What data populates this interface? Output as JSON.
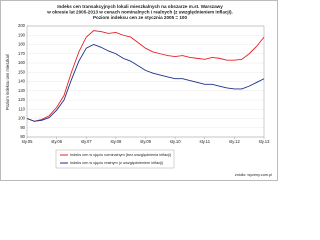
{
  "chart_data": {
    "type": "line",
    "title": [
      "Indeks cen transakcyjnych lokali mieszkalnych na obszarze m.st. Warszawy",
      "w okresie lat 2005-2013 w cenach nominalnych i realnych (z uwzględnieniem inflacji).",
      "Poziom indeksu cen ze stycznia 2005 = 100"
    ],
    "y_label": "Poziom indeksu cen mieszkań",
    "source": "źródło: wyceny.com.pl",
    "x": [
      2005,
      2005.25,
      2005.5,
      2005.75,
      2006,
      2006.25,
      2006.5,
      2006.75,
      2007,
      2007.25,
      2007.5,
      2007.75,
      2008,
      2008.25,
      2008.5,
      2008.75,
      2009,
      2009.25,
      2009.5,
      2009.75,
      2010,
      2010.25,
      2010.5,
      2010.75,
      2011,
      2011.25,
      2011.5,
      2011.75,
      2012,
      2012.25,
      2012.5,
      2012.75,
      2013
    ],
    "series": [
      {
        "name": "Indeks cen w ujęciu nominalnym (bez uwzględnienia inflacji)",
        "color": "#e8202a",
        "values": [
          100,
          97,
          99,
          103,
          112,
          125,
          150,
          172,
          188,
          195,
          194,
          192,
          193,
          190,
          188,
          182,
          176,
          172,
          170,
          168,
          167,
          168,
          166,
          165,
          164,
          166,
          165,
          163,
          163,
          164,
          170,
          178,
          188
        ]
      },
      {
        "name": "Indeks cen w ujęciu realnym (z uwzględnieniem inflacji)",
        "color": "#1f2f86",
        "values": [
          100,
          97,
          98,
          101,
          109,
          120,
          142,
          162,
          176,
          180,
          177,
          173,
          170,
          165,
          162,
          157,
          152,
          149,
          147,
          145,
          143,
          143,
          141,
          139,
          137,
          137,
          135,
          133,
          132,
          132,
          135,
          139,
          143
        ]
      }
    ],
    "xlim": [
      2005,
      2013
    ],
    "xticks": [
      {
        "value": 2005,
        "label": "sty.05"
      },
      {
        "value": 2006,
        "label": "sty.06"
      },
      {
        "value": 2007,
        "label": "sty.07"
      },
      {
        "value": 2008,
        "label": "sty.08"
      },
      {
        "value": 2009,
        "label": "sty.09"
      },
      {
        "value": 2010,
        "label": "sty.10"
      },
      {
        "value": 2011,
        "label": "sty.11"
      },
      {
        "value": 2012,
        "label": "sty.12"
      },
      {
        "value": 2013,
        "label": "sty.13"
      }
    ],
    "ylim": [
      80,
      200
    ],
    "yticks": [
      80,
      90,
      100,
      110,
      120,
      130,
      140,
      150,
      160,
      170,
      180,
      190,
      200
    ],
    "grid": true
  }
}
